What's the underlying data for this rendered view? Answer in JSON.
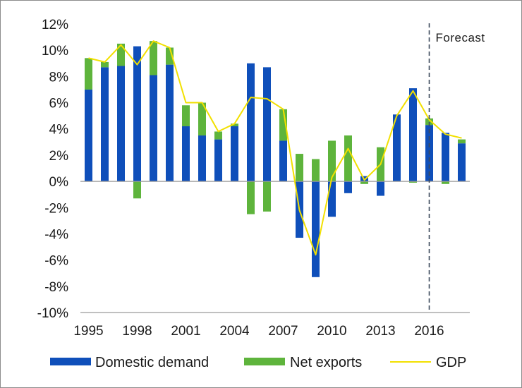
{
  "chart_data": {
    "type": "bar",
    "stacked": true,
    "x": [
      1995,
      1996,
      1997,
      1998,
      1999,
      2000,
      2001,
      2002,
      2003,
      2004,
      2005,
      2006,
      2007,
      2008,
      2009,
      2010,
      2011,
      2012,
      2013,
      2014,
      2015,
      2016,
      2017,
      2018
    ],
    "x_tick_labels": [
      "1995",
      "1998",
      "2001",
      "2004",
      "2007",
      "2010",
      "2013",
      "2016"
    ],
    "y_tick_labels": [
      "12%",
      "10%",
      "8%",
      "6%",
      "4%",
      "2%",
      "0%",
      "-2%",
      "-4%",
      "-6%",
      "-8%",
      "-10%"
    ],
    "ylim": [
      -10,
      12
    ],
    "y_unit": "%",
    "series": [
      {
        "name": "Domestic demand",
        "type": "bar",
        "color": "#0f4fba",
        "values": [
          7.0,
          8.7,
          8.8,
          10.3,
          8.1,
          8.9,
          4.2,
          3.5,
          3.2,
          4.2,
          9.0,
          8.7,
          3.1,
          -4.3,
          -7.3,
          -2.7,
          -0.9,
          0.4,
          -1.1,
          5.1,
          7.1,
          4.3,
          3.7,
          2.9
        ]
      },
      {
        "name": "Net exports",
        "type": "bar",
        "color": "#5eb43c",
        "values": [
          2.4,
          0.4,
          1.7,
          -1.3,
          2.6,
          1.3,
          1.6,
          2.5,
          0.6,
          0.2,
          -2.5,
          -2.3,
          2.4,
          2.1,
          1.7,
          3.1,
          3.5,
          -0.2,
          2.6,
          0.0,
          -0.1,
          0.5,
          -0.2,
          0.3
        ]
      },
      {
        "name": "GDP",
        "type": "line",
        "color": "#f2e000",
        "values": [
          9.4,
          9.1,
          10.4,
          8.9,
          10.7,
          10.2,
          6.0,
          6.0,
          3.8,
          4.4,
          6.4,
          6.3,
          5.5,
          -2.2,
          -5.6,
          0.3,
          2.5,
          0.1,
          1.3,
          5.0,
          6.9,
          4.7,
          3.6,
          3.3
        ]
      }
    ],
    "forecast": {
      "label": "Forecast",
      "from_year": 2016
    },
    "grid": false,
    "legend_position": "bottom"
  }
}
